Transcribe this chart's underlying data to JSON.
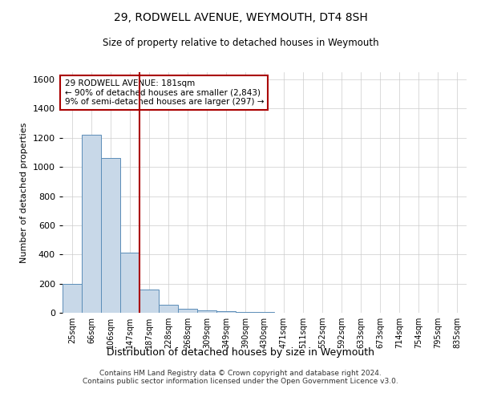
{
  "title1": "29, RODWELL AVENUE, WEYMOUTH, DT4 8SH",
  "title2": "Size of property relative to detached houses in Weymouth",
  "xlabel": "Distribution of detached houses by size in Weymouth",
  "ylabel": "Number of detached properties",
  "categories": [
    "25sqm",
    "66sqm",
    "106sqm",
    "147sqm",
    "187sqm",
    "228sqm",
    "268sqm",
    "309sqm",
    "349sqm",
    "390sqm",
    "430sqm",
    "471sqm",
    "511sqm",
    "552sqm",
    "592sqm",
    "633sqm",
    "673sqm",
    "714sqm",
    "754sqm",
    "795sqm",
    "835sqm"
  ],
  "values": [
    200,
    1220,
    1060,
    410,
    160,
    55,
    25,
    15,
    10,
    5,
    3,
    2,
    1,
    0,
    0,
    0,
    0,
    0,
    0,
    0,
    0
  ],
  "bar_color": "#c8d8e8",
  "bar_edge_color": "#5b8db8",
  "highlight_index": 4,
  "vline_color": "#aa0000",
  "annotation_text": "29 RODWELL AVENUE: 181sqm\n← 90% of detached houses are smaller (2,843)\n9% of semi-detached houses are larger (297) →",
  "annotation_box_color": "#aa0000",
  "ylim": [
    0,
    1650
  ],
  "yticks": [
    0,
    200,
    400,
    600,
    800,
    1000,
    1200,
    1400,
    1600
  ],
  "footnote1": "Contains HM Land Registry data © Crown copyright and database right 2024.",
  "footnote2": "Contains public sector information licensed under the Open Government Licence v3.0.",
  "bg_color": "#ffffff",
  "grid_color": "#cccccc"
}
